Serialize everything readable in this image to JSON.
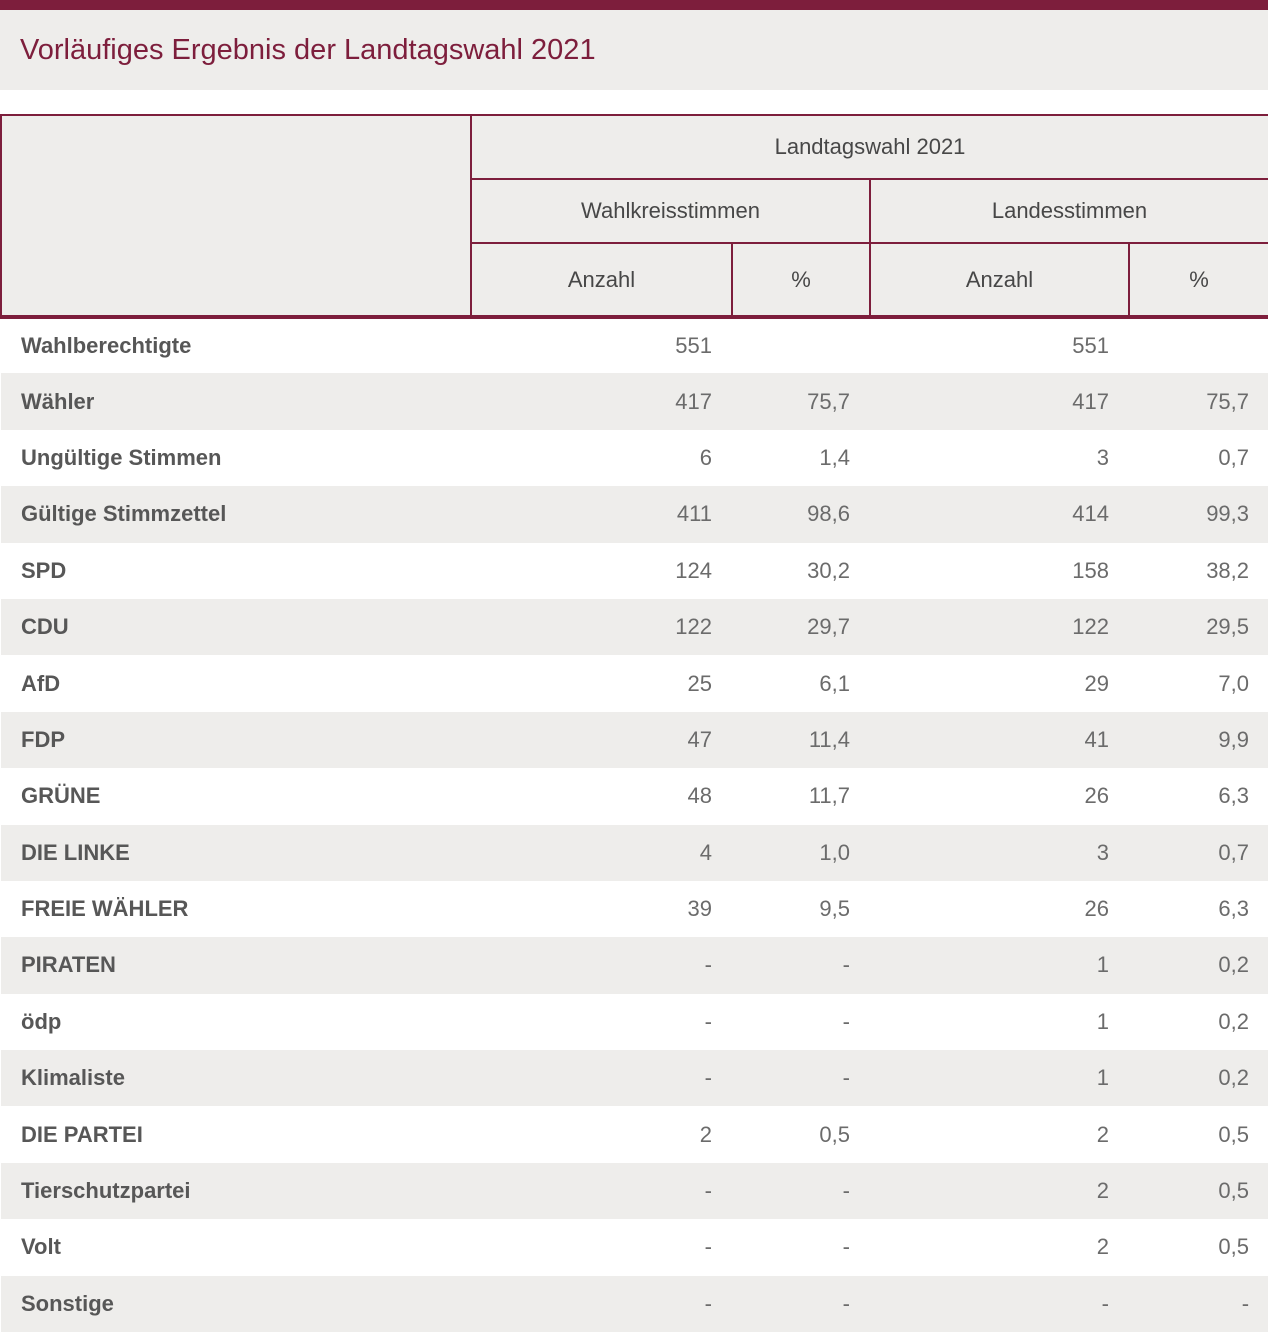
{
  "colors": {
    "accent": "#7d1e3c",
    "panel": "#eeedeb",
    "stripe": "#eeedeb"
  },
  "page": {
    "title": "Vorläufiges Ergebnis der Landtagswahl 2021"
  },
  "table": {
    "span_header": "Landtagswahl 2021",
    "groups": [
      "Wahlkreisstimmen",
      "Landesstimmen"
    ],
    "columns": [
      "Anzahl",
      "%",
      "Anzahl",
      "%"
    ],
    "rows": [
      {
        "label": "Wahlberechtigte",
        "values": [
          "551",
          "",
          "551",
          ""
        ]
      },
      {
        "label": "Wähler",
        "values": [
          "417",
          "75,7",
          "417",
          "75,7"
        ]
      },
      {
        "label": "Ungültige Stimmen",
        "values": [
          "6",
          "1,4",
          "3",
          "0,7"
        ]
      },
      {
        "label": "Gültige Stimmzettel",
        "values": [
          "411",
          "98,6",
          "414",
          "99,3"
        ]
      },
      {
        "label": "SPD",
        "values": [
          "124",
          "30,2",
          "158",
          "38,2"
        ]
      },
      {
        "label": "CDU",
        "values": [
          "122",
          "29,7",
          "122",
          "29,5"
        ]
      },
      {
        "label": "AfD",
        "values": [
          "25",
          "6,1",
          "29",
          "7,0"
        ]
      },
      {
        "label": "FDP",
        "values": [
          "47",
          "11,4",
          "41",
          "9,9"
        ]
      },
      {
        "label": "GRÜNE",
        "values": [
          "48",
          "11,7",
          "26",
          "6,3"
        ]
      },
      {
        "label": "DIE LINKE",
        "values": [
          "4",
          "1,0",
          "3",
          "0,7"
        ]
      },
      {
        "label": "FREIE WÄHLER",
        "values": [
          "39",
          "9,5",
          "26",
          "6,3"
        ]
      },
      {
        "label": "PIRATEN",
        "values": [
          "-",
          "-",
          "1",
          "0,2"
        ]
      },
      {
        "label": "ödp",
        "values": [
          "-",
          "-",
          "1",
          "0,2"
        ]
      },
      {
        "label": "Klimaliste",
        "values": [
          "-",
          "-",
          "1",
          "0,2"
        ]
      },
      {
        "label": "DIE PARTEI",
        "values": [
          "2",
          "0,5",
          "2",
          "0,5"
        ]
      },
      {
        "label": "Tierschutzpartei",
        "values": [
          "-",
          "-",
          "2",
          "0,5"
        ]
      },
      {
        "label": "Volt",
        "values": [
          "-",
          "-",
          "2",
          "0,5"
        ]
      },
      {
        "label": "Sonstige",
        "values": [
          "-",
          "-",
          "-",
          "-"
        ]
      }
    ]
  }
}
